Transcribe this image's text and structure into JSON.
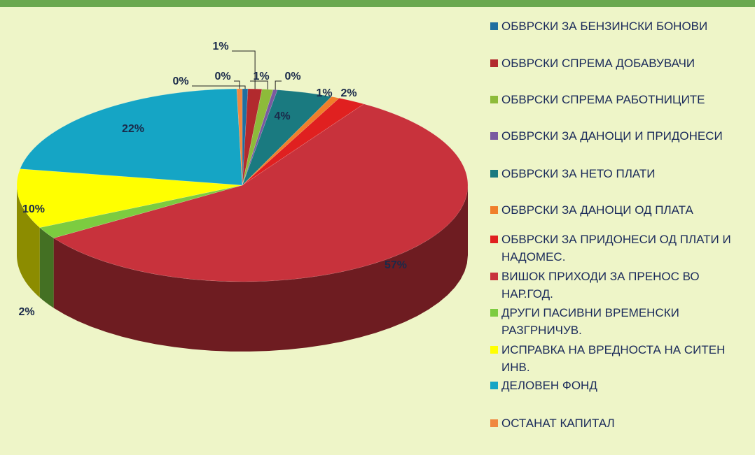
{
  "chart_data": {
    "type": "pie",
    "categories": [
      "ОБВРСКИ ЗА БЕНЗИНСКИ БОНОВИ",
      "ОБВРСКИ СПРЕМА ДОБАВУВАЧИ",
      "ОБВРСКИ СПРЕМА РАБОТНИЦИТЕ",
      "ОБВРСКИ ЗА ДАНОЦИ И ПРИДОНЕСИ",
      "ОБВРСКИ ЗА НЕТО ПЛАТИ",
      "ОБВРСКИ ЗА ДАНОЦИ ОД ПЛАТА",
      "ОБВРСКИ ЗА ПРИДОНЕСИ ОД ПЛАТИ И НАДОМЕС.",
      "ВИШОК ПРИХОДИ ЗА ПРЕНОС ВО НАР.ГОД.",
      "ДРУГИ ПАСИВНИ ВРЕМЕНСКИ РАЗГРНИЧУВ.",
      "ИСПРАВКА НА ВРЕДНОСТА НА СИТЕН ИНВ.",
      "ДЕЛОВЕН ФОНД",
      "ОСТАНАТ КАПИТАЛ"
    ],
    "values": [
      0.4,
      1,
      0.8,
      0.3,
      4,
      0.6,
      2,
      57,
      2,
      10,
      22,
      0.4
    ],
    "value_labels": [
      "0%",
      "1%",
      "1%",
      "0%",
      "4%",
      "1%",
      "2%",
      "57%",
      "2%",
      "10%",
      "22%",
      "0%"
    ],
    "colors": [
      "#1f6fa0",
      "#b22a2e",
      "#8dbb3a",
      "#7a5aa0",
      "#1a7a80",
      "#f07f2a",
      "#e02020",
      "#c8323c",
      "#7ccc40",
      "#ffff00",
      "#15a5c5",
      "#f08840"
    ],
    "legend": "right"
  }
}
